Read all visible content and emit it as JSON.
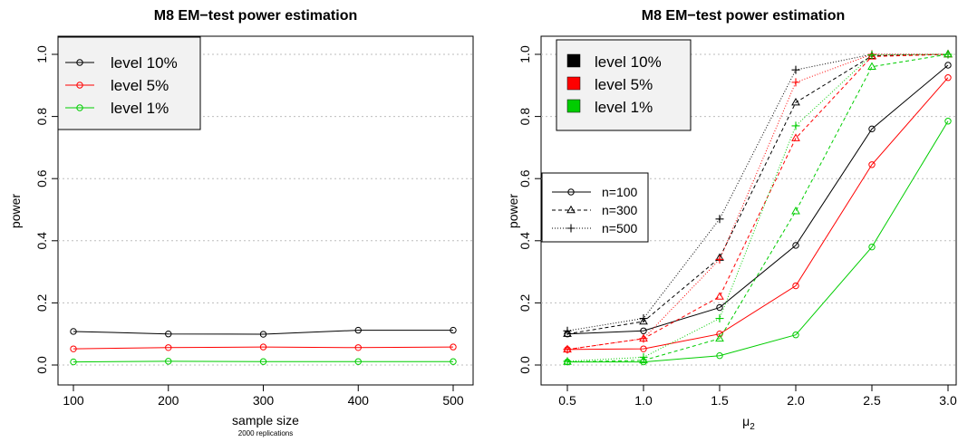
{
  "chart_data": [
    {
      "type": "line",
      "title": "M8 EM−test power estimation",
      "xlabel": "sample size",
      "xnote": "2000 replications",
      "ylabel": "power",
      "x": [
        100,
        200,
        300,
        400,
        500
      ],
      "xticks": [
        "100",
        "200",
        "300",
        "400",
        "500"
      ],
      "yticks": [
        "0.0",
        "0.2",
        "0.4",
        "0.6",
        "0.8",
        "1.0"
      ],
      "xlim": [
        100,
        500
      ],
      "ylim": [
        0,
        1
      ],
      "grid": "horizontal dotted",
      "legend_position": "top-left",
      "series": [
        {
          "name": "level 10%",
          "color": "#000000",
          "marker": "circle",
          "values": [
            0.108,
            0.1,
            0.099,
            0.112,
            0.112
          ]
        },
        {
          "name": "level 5%",
          "color": "#ff0000",
          "marker": "circle",
          "values": [
            0.052,
            0.056,
            0.058,
            0.056,
            0.058
          ]
        },
        {
          "name": "level 1%",
          "color": "#00cd00",
          "marker": "circle",
          "values": [
            0.01,
            0.012,
            0.011,
            0.011,
            0.011
          ]
        }
      ]
    },
    {
      "type": "line",
      "title": "M8 EM−test power estimation",
      "xlabel": "μ",
      "xlabel_sub": "2",
      "ylabel": "power",
      "x": [
        0.5,
        1.0,
        1.5,
        2.0,
        2.5,
        3.0
      ],
      "xticks": [
        "0.5",
        "1.0",
        "1.5",
        "2.0",
        "2.5",
        "3.0"
      ],
      "yticks": [
        "0.0",
        "0.2",
        "0.4",
        "0.6",
        "0.8",
        "1.0"
      ],
      "xlim": [
        0.5,
        3.0
      ],
      "ylim": [
        0,
        1
      ],
      "grid": "horizontal dotted",
      "legend_position": "top-left",
      "legend_levels": [
        {
          "name": "level 10%",
          "color": "#000000"
        },
        {
          "name": "level 5%",
          "color": "#ff0000"
        },
        {
          "name": "level 1%",
          "color": "#00cd00"
        }
      ],
      "legend_sizes": [
        {
          "name": "n=100",
          "marker": "circle",
          "dash": "solid"
        },
        {
          "name": "n=300",
          "marker": "triangle",
          "dash": "dashed"
        },
        {
          "name": "n=500",
          "marker": "plus",
          "dash": "dotted"
        }
      ],
      "series": [
        {
          "level": "level 10%",
          "n": "n=100",
          "color": "#000000",
          "marker": "circle",
          "dash": "solid",
          "values": [
            0.1,
            0.11,
            0.185,
            0.385,
            0.76,
            0.965
          ]
        },
        {
          "level": "level 5%",
          "n": "n=100",
          "color": "#ff0000",
          "marker": "circle",
          "dash": "solid",
          "values": [
            0.05,
            0.052,
            0.1,
            0.255,
            0.645,
            0.925
          ]
        },
        {
          "level": "level 1%",
          "n": "n=100",
          "color": "#00cd00",
          "marker": "circle",
          "dash": "solid",
          "values": [
            0.01,
            0.01,
            0.03,
            0.097,
            0.38,
            0.785
          ]
        },
        {
          "level": "level 10%",
          "n": "n=300",
          "color": "#000000",
          "marker": "triangle",
          "dash": "dashed",
          "values": [
            0.1,
            0.14,
            0.345,
            0.845,
            0.995,
            1.0
          ]
        },
        {
          "level": "level 5%",
          "n": "n=300",
          "color": "#ff0000",
          "marker": "triangle",
          "dash": "dashed",
          "values": [
            0.05,
            0.085,
            0.22,
            0.73,
            0.993,
            1.0
          ]
        },
        {
          "level": "level 1%",
          "n": "n=300",
          "color": "#00cd00",
          "marker": "triangle",
          "dash": "dashed",
          "values": [
            0.01,
            0.015,
            0.085,
            0.495,
            0.96,
            1.0
          ]
        },
        {
          "level": "level 10%",
          "n": "n=500",
          "color": "#000000",
          "marker": "plus",
          "dash": "dotted",
          "values": [
            0.11,
            0.15,
            0.47,
            0.95,
            1.0,
            1.0
          ]
        },
        {
          "level": "level 5%",
          "n": "n=500",
          "color": "#ff0000",
          "marker": "plus",
          "dash": "dotted",
          "values": [
            0.05,
            0.085,
            0.34,
            0.91,
            1.0,
            1.0
          ]
        },
        {
          "level": "level 1%",
          "n": "n=500",
          "color": "#00cd00",
          "marker": "plus",
          "dash": "dotted",
          "values": [
            0.012,
            0.025,
            0.15,
            0.77,
            0.998,
            1.0
          ]
        }
      ]
    }
  ]
}
